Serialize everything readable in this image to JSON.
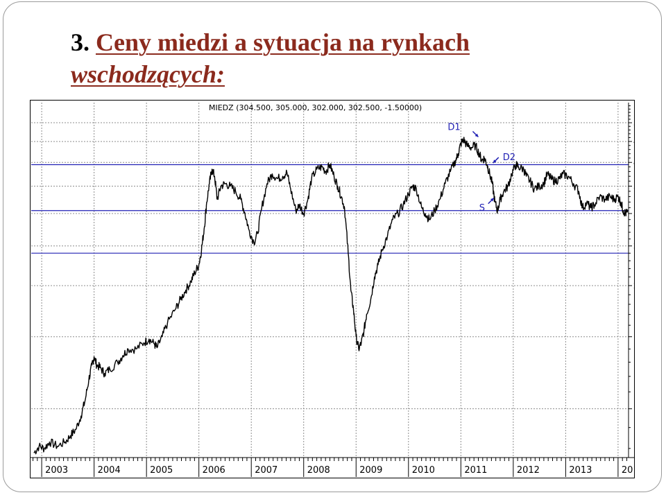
{
  "slide": {
    "title_number": "3.",
    "title_line1": "Ceny miedzi a sytuacja na rynkach",
    "title_line2": "wschodzących:"
  },
  "colors": {
    "title": "#8b2a1d",
    "price_line": "#000000",
    "levels": "#1f1fb4",
    "grid": "#8c8c8c",
    "background": "#ffffff"
  },
  "chart_data": {
    "type": "line",
    "title": "MIEDZ (304.500, 305.000, 302.000, 302.500, -1.50000)",
    "scale": "log",
    "grid": true,
    "y_ticks": [
      100,
      150,
      200,
      250,
      300,
      350,
      400,
      450,
      500
    ],
    "ylim": [
      76,
      560
    ],
    "x_labels": [
      "2003",
      "2004",
      "2005",
      "2006",
      "2007",
      "2008",
      "2009",
      "2010",
      "2011",
      "2012",
      "2013",
      "20"
    ],
    "xlim": [
      2002.8,
      2014.2
    ],
    "horizontal_levels": [
      240,
      305,
      395
    ],
    "annotations": [
      {
        "text": "D1",
        "x": 2010.75,
        "y": 480
      },
      {
        "text": "S",
        "x": 2011.35,
        "y": 305
      },
      {
        "text": "D2",
        "x": 2011.8,
        "y": 405
      }
    ],
    "series": [
      {
        "points": [
          [
            2002.85,
            78
          ],
          [
            2002.95,
            81
          ],
          [
            2003.05,
            80
          ],
          [
            2003.15,
            83
          ],
          [
            2003.3,
            81
          ],
          [
            2003.45,
            83
          ],
          [
            2003.55,
            86
          ],
          [
            2003.65,
            89
          ],
          [
            2003.75,
            96
          ],
          [
            2003.83,
            105
          ],
          [
            2003.9,
            118
          ],
          [
            2003.96,
            128
          ],
          [
            2004.0,
            134
          ],
          [
            2004.05,
            128
          ],
          [
            2004.12,
            126
          ],
          [
            2004.2,
            122
          ],
          [
            2004.3,
            125
          ],
          [
            2004.45,
            130
          ],
          [
            2004.55,
            135
          ],
          [
            2004.65,
            140
          ],
          [
            2004.8,
            140
          ],
          [
            2004.95,
            145
          ],
          [
            2005.05,
            148
          ],
          [
            2005.15,
            144
          ],
          [
            2005.2,
            141
          ],
          [
            2005.3,
            150
          ],
          [
            2005.4,
            162
          ],
          [
            2005.55,
            175
          ],
          [
            2005.65,
            185
          ],
          [
            2005.75,
            195
          ],
          [
            2005.85,
            205
          ],
          [
            2005.92,
            215
          ],
          [
            2006.0,
            225
          ],
          [
            2006.05,
            245
          ],
          [
            2006.1,
            275
          ],
          [
            2006.15,
            320
          ],
          [
            2006.2,
            355
          ],
          [
            2006.25,
            385
          ],
          [
            2006.3,
            370
          ],
          [
            2006.35,
            325
          ],
          [
            2006.42,
            350
          ],
          [
            2006.5,
            355
          ],
          [
            2006.6,
            350
          ],
          [
            2006.7,
            340
          ],
          [
            2006.8,
            325
          ],
          [
            2006.88,
            300
          ],
          [
            2006.95,
            275
          ],
          [
            2007.05,
            255
          ],
          [
            2007.12,
            268
          ],
          [
            2007.2,
            310
          ],
          [
            2007.3,
            355
          ],
          [
            2007.4,
            375
          ],
          [
            2007.5,
            365
          ],
          [
            2007.6,
            370
          ],
          [
            2007.68,
            378
          ],
          [
            2007.75,
            345
          ],
          [
            2007.85,
            305
          ],
          [
            2007.92,
            315
          ],
          [
            2008.0,
            300
          ],
          [
            2008.08,
            325
          ],
          [
            2008.15,
            365
          ],
          [
            2008.25,
            385
          ],
          [
            2008.35,
            390
          ],
          [
            2008.42,
            380
          ],
          [
            2008.5,
            395
          ],
          [
            2008.58,
            370
          ],
          [
            2008.65,
            350
          ],
          [
            2008.72,
            330
          ],
          [
            2008.78,
            310
          ],
          [
            2008.85,
            240
          ],
          [
            2008.9,
            195
          ],
          [
            2008.95,
            175
          ],
          [
            2009.0,
            150
          ],
          [
            2009.05,
            140
          ],
          [
            2009.1,
            145
          ],
          [
            2009.15,
            155
          ],
          [
            2009.2,
            170
          ],
          [
            2009.28,
            185
          ],
          [
            2009.35,
            210
          ],
          [
            2009.42,
            225
          ],
          [
            2009.5,
            245
          ],
          [
            2009.6,
            265
          ],
          [
            2009.7,
            290
          ],
          [
            2009.8,
            300
          ],
          [
            2009.9,
            315
          ],
          [
            2010.0,
            335
          ],
          [
            2010.08,
            350
          ],
          [
            2010.15,
            345
          ],
          [
            2010.25,
            310
          ],
          [
            2010.32,
            300
          ],
          [
            2010.4,
            290
          ],
          [
            2010.5,
            305
          ],
          [
            2010.6,
            325
          ],
          [
            2010.7,
            355
          ],
          [
            2010.8,
            380
          ],
          [
            2010.9,
            405
          ],
          [
            2010.95,
            420
          ],
          [
            2011.0,
            445
          ],
          [
            2011.05,
            455
          ],
          [
            2011.12,
            440
          ],
          [
            2011.2,
            435
          ],
          [
            2011.28,
            440
          ],
          [
            2011.35,
            420
          ],
          [
            2011.4,
            405
          ],
          [
            2011.45,
            410
          ],
          [
            2011.5,
            395
          ],
          [
            2011.55,
            375
          ],
          [
            2011.6,
            355
          ],
          [
            2011.65,
            320
          ],
          [
            2011.7,
            305
          ],
          [
            2011.75,
            325
          ],
          [
            2011.82,
            340
          ],
          [
            2011.9,
            350
          ],
          [
            2011.97,
            375
          ],
          [
            2012.05,
            395
          ],
          [
            2012.1,
            390
          ],
          [
            2012.2,
            385
          ],
          [
            2012.25,
            370
          ],
          [
            2012.32,
            360
          ],
          [
            2012.4,
            345
          ],
          [
            2012.5,
            350
          ],
          [
            2012.58,
            355
          ],
          [
            2012.65,
            375
          ],
          [
            2012.72,
            365
          ],
          [
            2012.8,
            360
          ],
          [
            2012.88,
            365
          ],
          [
            2012.95,
            375
          ],
          [
            2013.05,
            370
          ],
          [
            2013.15,
            355
          ],
          [
            2013.25,
            340
          ],
          [
            2013.32,
            310
          ],
          [
            2013.4,
            318
          ],
          [
            2013.48,
            310
          ],
          [
            2013.55,
            315
          ],
          [
            2013.65,
            330
          ],
          [
            2013.75,
            325
          ],
          [
            2013.85,
            330
          ],
          [
            2013.92,
            325
          ],
          [
            2014.0,
            330
          ],
          [
            2014.05,
            320
          ],
          [
            2014.1,
            305
          ],
          [
            2014.14,
            300
          ],
          [
            2014.18,
            302
          ]
        ]
      }
    ]
  }
}
